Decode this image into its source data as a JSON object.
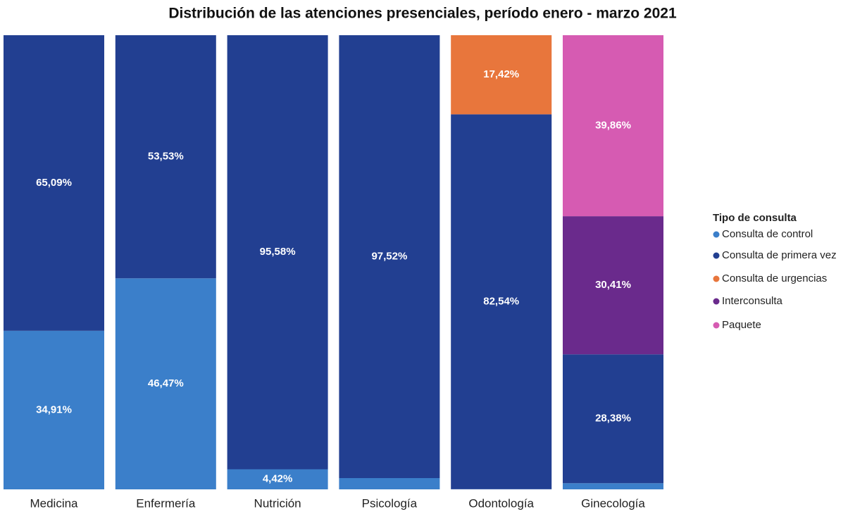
{
  "chart_data": {
    "type": "stacked_bar",
    "title": "Distribución de las atenciones presenciales, período enero - marzo 2021",
    "categories": [
      "Medicina",
      "Enfermería",
      "Nutrición",
      "Psicología",
      "Odontología",
      "Ginecología"
    ],
    "ylim": [
      0,
      100
    ],
    "legend_title": "Tipo de consulta",
    "legend": "right",
    "series": [
      {
        "name": "Consulta de control",
        "color": "#3b7fca",
        "values": [
          34.91,
          46.47,
          4.42,
          2.48,
          0.04,
          1.35
        ],
        "value_labels": [
          "34,91%",
          "46,47%",
          "4,42%",
          null,
          null,
          null
        ]
      },
      {
        "name": "Consulta de primera vez",
        "color": "#223f91",
        "values": [
          65.09,
          53.53,
          95.58,
          97.52,
          82.54,
          28.38
        ],
        "value_labels": [
          "65,09%",
          "53,53%",
          "95,58%",
          "97,52%",
          "82,54%",
          "28,38%"
        ]
      },
      {
        "name": "Consulta de urgencias",
        "color": "#e8763c",
        "values": [
          0,
          0,
          0,
          0,
          17.42,
          0
        ],
        "value_labels": [
          null,
          null,
          null,
          null,
          "17,42%",
          null
        ]
      },
      {
        "name": "Interconsulta",
        "color": "#6a2a8c",
        "values": [
          0,
          0,
          0,
          0,
          0,
          30.41
        ],
        "value_labels": [
          null,
          null,
          null,
          null,
          null,
          "30,41%"
        ]
      },
      {
        "name": "Paquete",
        "color": "#d65bb2",
        "values": [
          0,
          0,
          0,
          0,
          0,
          39.86
        ],
        "value_labels": [
          null,
          null,
          null,
          null,
          null,
          "39,86%"
        ]
      }
    ]
  }
}
